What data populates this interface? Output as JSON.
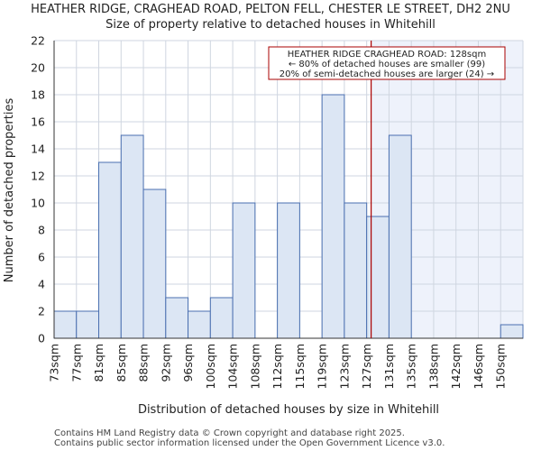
{
  "title_line1": "HEATHER RIDGE, CRAGHEAD ROAD, PELTON FELL, CHESTER LE STREET, DH2 2NU",
  "title_line2": "Size of property relative to detached houses in Whitehill",
  "footer_line1": "Contains HM Land Registry data © Crown copyright and database right 2025.",
  "footer_line2": "Contains public sector information licensed under the Open Government Licence v3.0.",
  "chart_data": {
    "type": "bar",
    "title": "HEATHER RIDGE, CRAGHEAD ROAD, PELTON FELL, CHESTER LE STREET, DH2 2NU",
    "subtitle": "Size of property relative to detached houses in Whitehill",
    "xlabel": "Distribution of detached houses by size in Whitehill",
    "ylabel": "Number of detached properties",
    "categories": [
      "73sqm",
      "77sqm",
      "81sqm",
      "85sqm",
      "88sqm",
      "92sqm",
      "96sqm",
      "100sqm",
      "104sqm",
      "108sqm",
      "112sqm",
      "115sqm",
      "119sqm",
      "123sqm",
      "127sqm",
      "131sqm",
      "135sqm",
      "138sqm",
      "142sqm",
      "146sqm",
      "150sqm"
    ],
    "values": [
      2,
      2,
      13,
      15,
      11,
      3,
      2,
      3,
      10,
      0,
      10,
      0,
      18,
      10,
      9,
      15,
      0,
      0,
      0,
      0,
      1
    ],
    "ylim": [
      0,
      22
    ],
    "yticks": [
      0,
      2,
      4,
      6,
      8,
      10,
      12,
      14,
      16,
      18,
      20,
      22
    ],
    "grid": true,
    "bar_color": "#dce6f4",
    "bar_edge": "#4a6fb0",
    "marker_color": "#aa0000",
    "marker_position_bins": 14.2,
    "annotation": {
      "line1": "HEATHER RIDGE CRAGHEAD ROAD: 128sqm",
      "line2": "← 80% of detached houses are smaller (99)",
      "line3": "20% of semi-detached houses are larger (24) →"
    }
  }
}
